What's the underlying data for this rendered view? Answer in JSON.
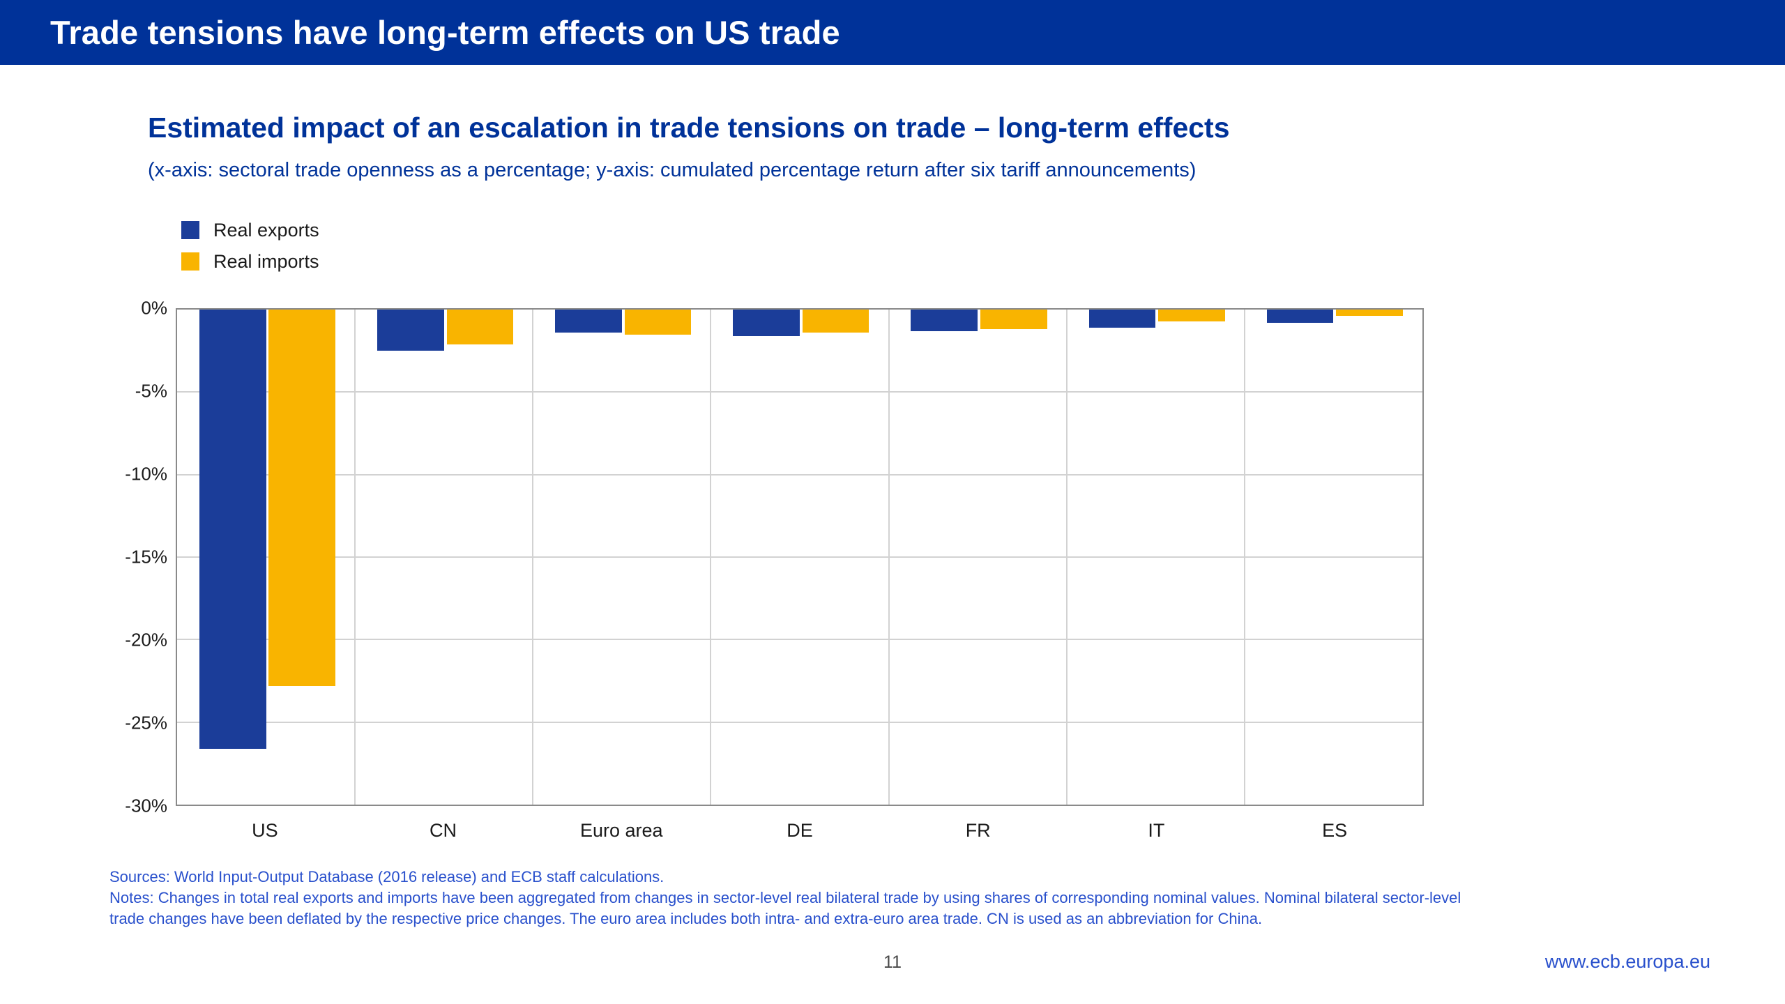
{
  "slide": {
    "header_title": "Trade tensions have long-term effects on US trade",
    "page_number": "11",
    "website": "www.ecb.europa.eu"
  },
  "chart_data": {
    "type": "bar",
    "title": "Estimated impact of an escalation in trade tensions on trade – long-term effects",
    "subtitle": "(x-axis: sectoral trade openness as a percentage; y-axis: cumulated percentage return after six tariff announcements)",
    "categories": [
      "US",
      "CN",
      "Euro area",
      "DE",
      "FR",
      "IT",
      "ES"
    ],
    "series": [
      {
        "name": "Real exports",
        "color": "#1b3d99",
        "values": [
          -26.6,
          -2.5,
          -1.4,
          -1.6,
          -1.3,
          -1.1,
          -0.8
        ]
      },
      {
        "name": "Real imports",
        "color": "#f9b400",
        "values": [
          -22.8,
          -2.1,
          -1.5,
          -1.4,
          -1.2,
          -0.7,
          -0.4
        ]
      }
    ],
    "ylim": [
      -30,
      0
    ],
    "ytick_labels": [
      "0%",
      "-5%",
      "-10%",
      "-15%",
      "-20%",
      "-25%",
      "-30%"
    ],
    "grid": true,
    "legend_position": "top-left"
  },
  "footer": {
    "sources": "Sources: World Input-Output Database (2016 release) and ECB staff calculations.",
    "notes": "Notes: Changes in total real exports and imports have been aggregated from changes in sector-level real bilateral trade by using shares of corresponding nominal values. Nominal bilateral sector-level trade changes have been deflated by the respective price changes. The euro area includes both intra- and extra-euro area trade. CN is used as an abbreviation for China."
  },
  "colors": {
    "banner_bg": "#003299",
    "title_blue": "#003299",
    "notes_blue": "#2950cc",
    "bar_exports": "#1b3d99",
    "bar_imports": "#f9b400",
    "grid": "#d2d2d2",
    "plot_border": "#8a8a8a"
  }
}
